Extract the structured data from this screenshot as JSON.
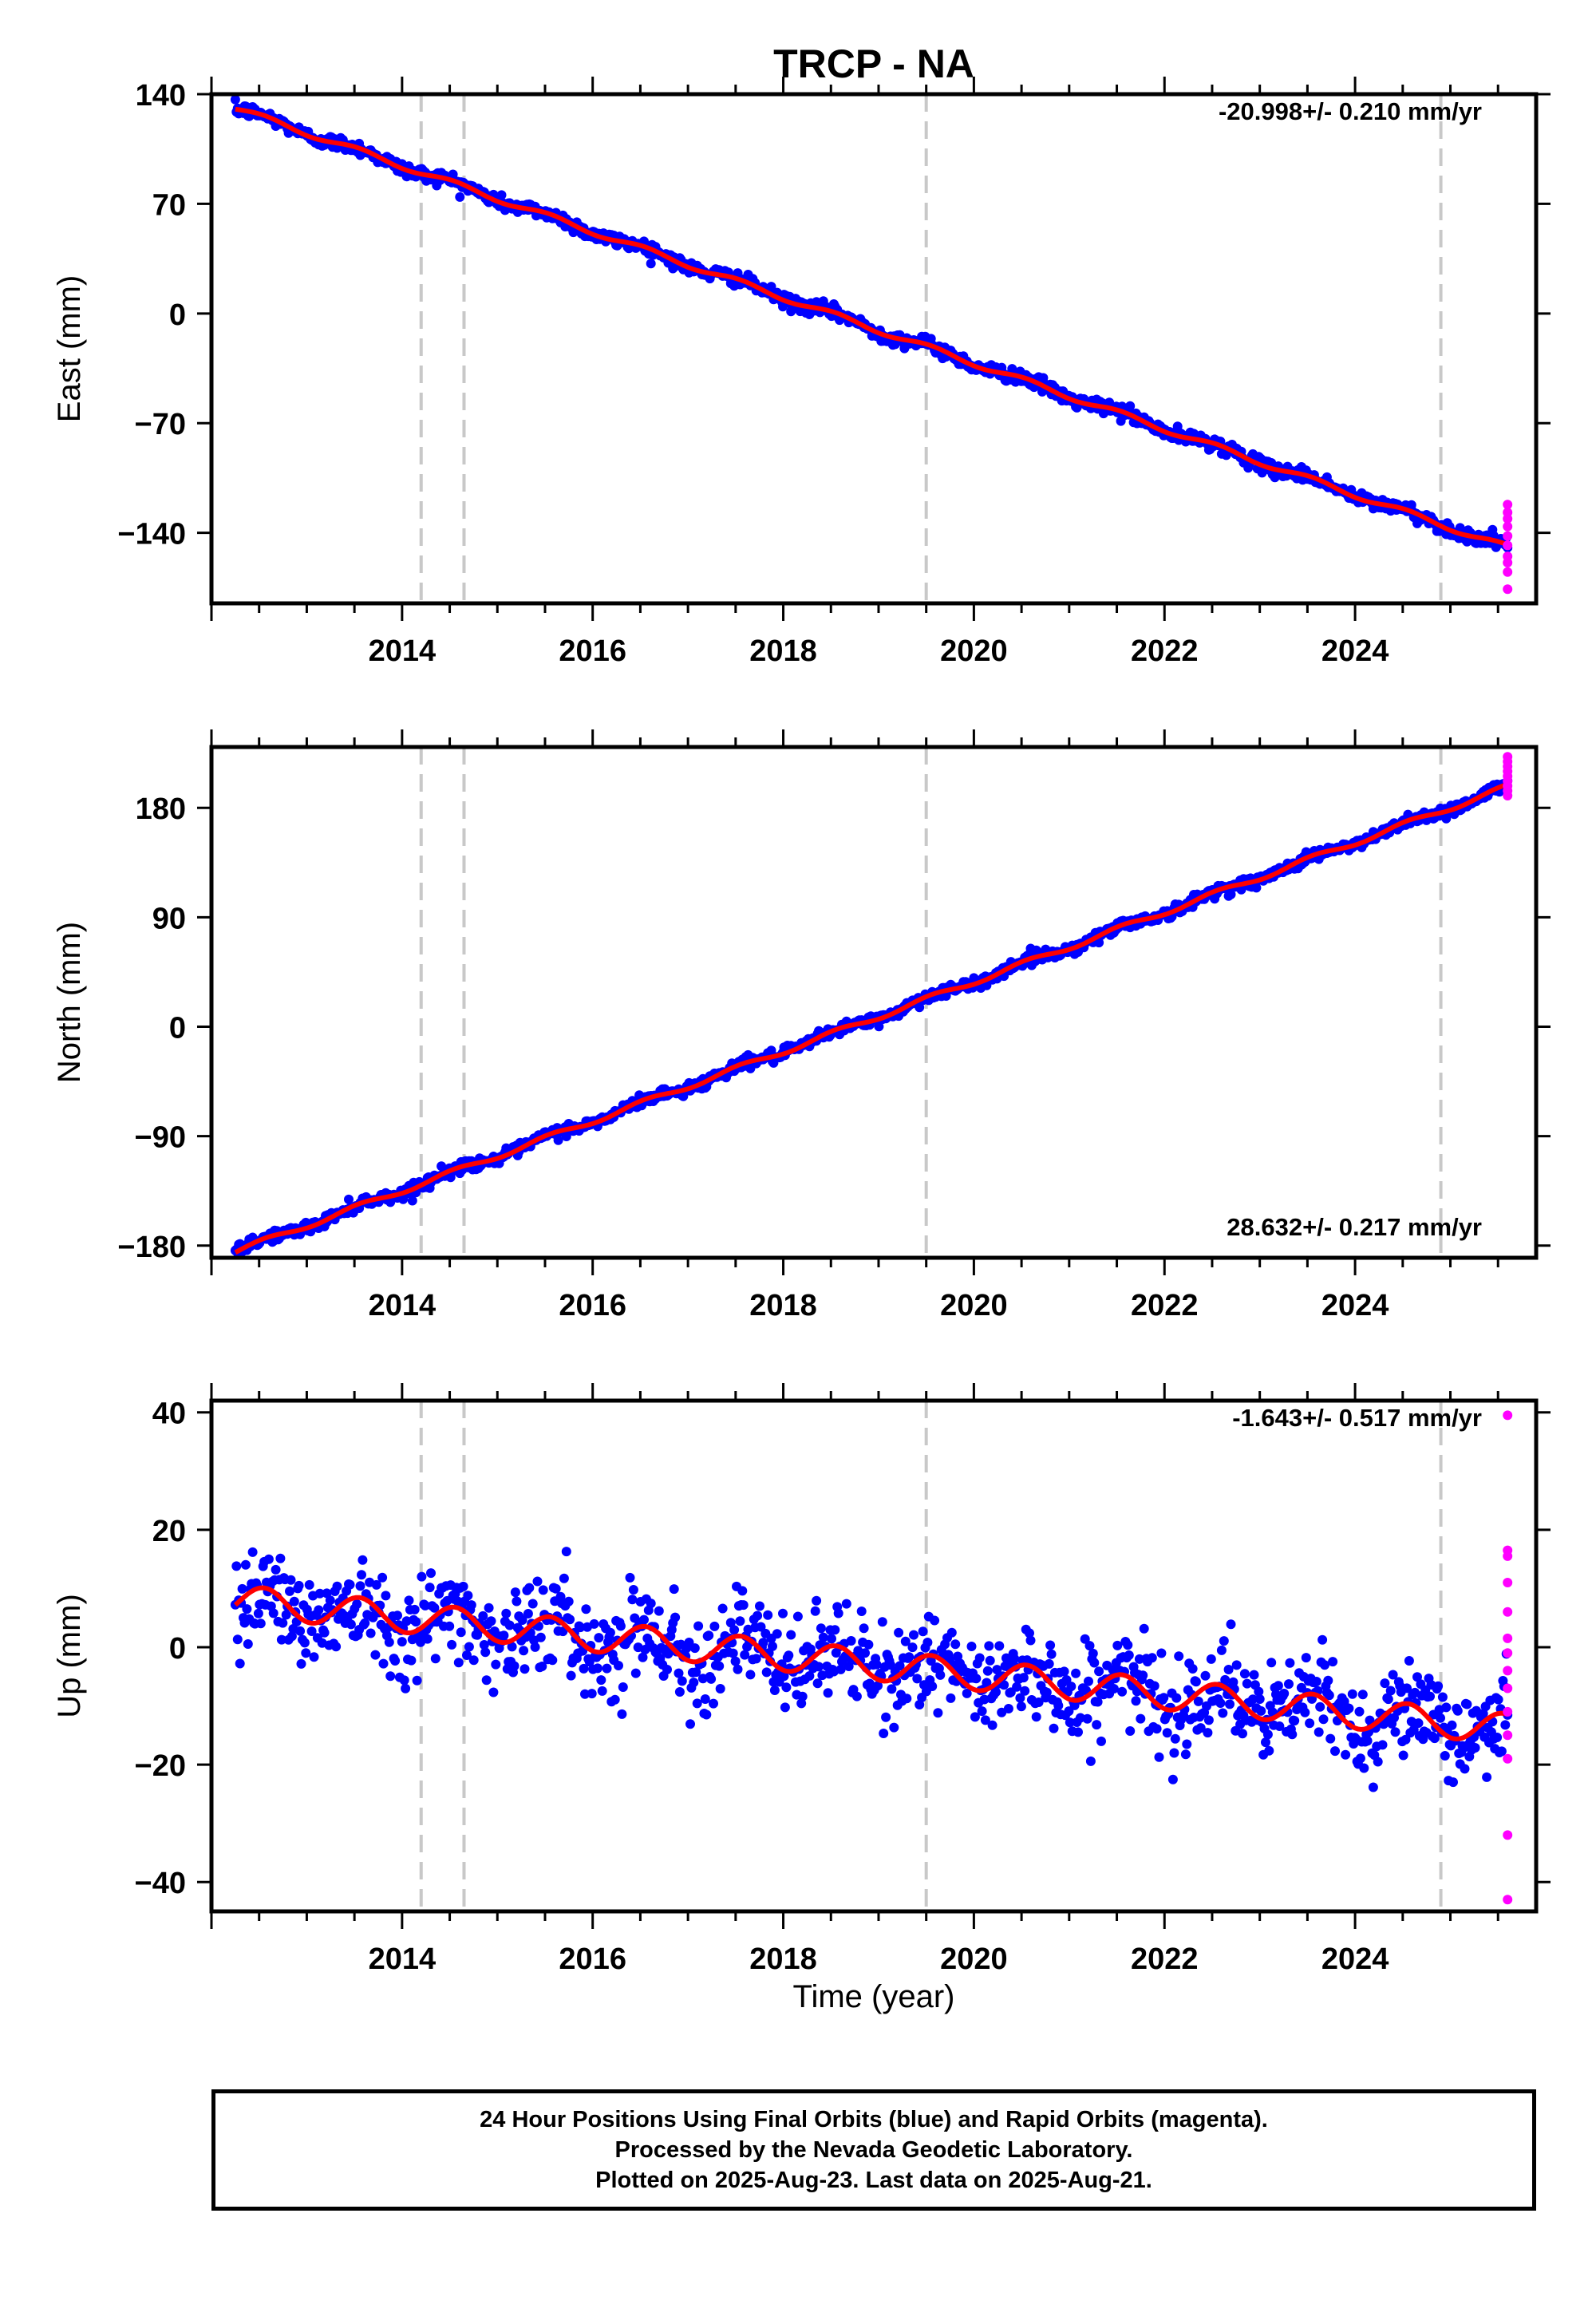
{
  "title": "TRCP - NA",
  "xlabel": "Time (year)",
  "footer": {
    "line1": "24 Hour Positions Using Final Orbits (blue) and Rapid Orbits (magenta).",
    "line2": "Processed by the Nevada Geodetic Laboratory.",
    "line3": "Plotted on 2025-Aug-23. Last data on 2025-Aug-21."
  },
  "colors": {
    "final_orbits": "#0000ff",
    "rapid_orbits": "#ff00ff",
    "model": "#ff0000",
    "event_lines": "#c8c8c8"
  },
  "chart_data": [
    {
      "type": "scatter",
      "name": "east",
      "ylabel": "East (mm)",
      "rate_label": "-20.998+/- 0.210 mm/yr",
      "xlim": [
        2012.0,
        2025.9
      ],
      "ylim": [
        -185,
        140
      ],
      "yticks": [
        140,
        70,
        0,
        -70,
        -140
      ],
      "xticks": [
        2014,
        2016,
        2018,
        2020,
        2022,
        2024
      ],
      "event_lines": [
        2014.2,
        2014.65,
        2019.5,
        2024.9
      ],
      "data_range": [
        2012.25,
        2025.6
      ],
      "model": {
        "start": 131,
        "rate": -20.998,
        "annual_amp": 1.8,
        "noise": 2.2
      },
      "rapid": [
        {
          "x": 2025.6,
          "y": -122
        },
        {
          "x": 2025.6,
          "y": -127
        },
        {
          "x": 2025.6,
          "y": -131
        },
        {
          "x": 2025.6,
          "y": -136
        },
        {
          "x": 2025.6,
          "y": -142
        },
        {
          "x": 2025.6,
          "y": -148
        },
        {
          "x": 2025.6,
          "y": -155
        },
        {
          "x": 2025.6,
          "y": -159
        },
        {
          "x": 2025.6,
          "y": -165
        },
        {
          "x": 2025.6,
          "y": -176
        }
      ]
    },
    {
      "type": "scatter",
      "name": "north",
      "ylabel": "North (mm)",
      "rate_label": "28.632+/- 0.217 mm/yr",
      "xlim": [
        2012.0,
        2025.9
      ],
      "ylim": [
        -190,
        230
      ],
      "yticks": [
        180,
        90,
        0,
        -90,
        -180
      ],
      "xticks": [
        2014,
        2016,
        2018,
        2020,
        2022,
        2024
      ],
      "event_lines": [
        2014.2,
        2014.65,
        2019.5,
        2024.9
      ],
      "data_range": [
        2012.25,
        2025.6
      ],
      "model": {
        "start": -185,
        "rate": 28.632,
        "annual_amp": 2.2,
        "noise": 2.4
      },
      "rapid": [
        {
          "x": 2025.6,
          "y": 190
        },
        {
          "x": 2025.6,
          "y": 194
        },
        {
          "x": 2025.6,
          "y": 198
        },
        {
          "x": 2025.6,
          "y": 202
        },
        {
          "x": 2025.6,
          "y": 206
        },
        {
          "x": 2025.6,
          "y": 210
        },
        {
          "x": 2025.6,
          "y": 214
        },
        {
          "x": 2025.6,
          "y": 218
        },
        {
          "x": 2025.6,
          "y": 222
        }
      ]
    },
    {
      "type": "scatter",
      "name": "up",
      "ylabel": "Up (mm)",
      "rate_label": "-1.643+/- 0.517 mm/yr",
      "xlim": [
        2012.0,
        2025.9
      ],
      "ylim": [
        -45,
        42
      ],
      "yticks": [
        40,
        20,
        0,
        -20,
        -40
      ],
      "xticks": [
        2014,
        2016,
        2018,
        2020,
        2022,
        2024
      ],
      "event_lines": [
        2014.2,
        2014.65,
        2019.5,
        2024.9
      ],
      "data_range": [
        2012.25,
        2025.6
      ],
      "model": {
        "start": 8.0,
        "rate": -1.643,
        "annual_amp": 2.6,
        "noise": 4.0
      },
      "rapid": [
        {
          "x": 2025.6,
          "y": 39.5
        },
        {
          "x": 2025.6,
          "y": 16.5
        },
        {
          "x": 2025.6,
          "y": 15.5
        },
        {
          "x": 2025.6,
          "y": 11
        },
        {
          "x": 2025.6,
          "y": 6
        },
        {
          "x": 2025.6,
          "y": 1.5
        },
        {
          "x": 2025.6,
          "y": -1
        },
        {
          "x": 2025.6,
          "y": -4
        },
        {
          "x": 2025.6,
          "y": -7
        },
        {
          "x": 2025.6,
          "y": -11
        },
        {
          "x": 2025.6,
          "y": -15
        },
        {
          "x": 2025.6,
          "y": -19
        },
        {
          "x": 2025.6,
          "y": -32
        },
        {
          "x": 2025.6,
          "y": -43
        }
      ]
    }
  ]
}
